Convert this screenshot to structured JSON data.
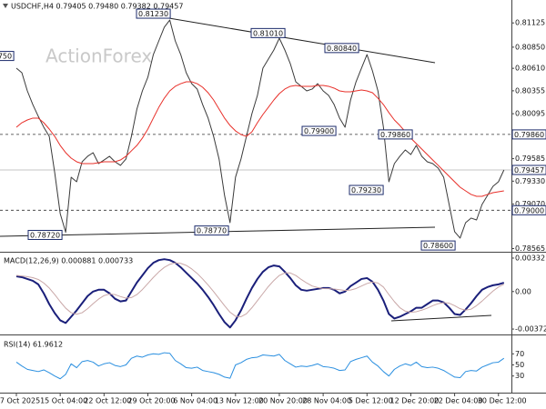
{
  "chart_data": [
    {
      "type": "line",
      "title": "USDCHF,H4  0.79405 0.79480 0.79382 0.79457",
      "watermark": "ActionForex",
      "categories": [
        "7 Oct 2025",
        null,
        null,
        null,
        null,
        null,
        null,
        null,
        "15 Oct 04:00",
        null,
        null,
        null,
        null,
        null,
        null,
        null,
        "22 Oct 12:00",
        null,
        null,
        null,
        null,
        null,
        null,
        null,
        "29 Oct 20:00",
        null,
        null,
        null,
        null,
        null,
        null,
        null,
        "6 Nov 04:00",
        null,
        null,
        null,
        null,
        null,
        null,
        null,
        "13 Nov 12:00",
        null,
        null,
        null,
        null,
        null,
        null,
        null,
        "20 Nov 20:00",
        null,
        null,
        null,
        null,
        null,
        null,
        null,
        "28 Nov 04:00",
        null,
        null,
        null,
        null,
        null,
        null,
        null,
        "5 Dec 12:00",
        null,
        null,
        null,
        null,
        null,
        null,
        null,
        "12 Dec 20:00",
        null,
        null,
        null,
        null,
        null,
        null,
        null,
        "22 Dec 04:00",
        null,
        null,
        null,
        null,
        null,
        null,
        null,
        "30 Dec 12:00",
        null
      ],
      "series": [
        {
          "color": "#3a3a3a",
          "values": [
            0.80612,
            0.8056,
            0.80354,
            0.80199,
            0.80065,
            0.79942,
            0.79838,
            0.79426,
            0.78962,
            0.7875,
            0.79375,
            0.79323,
            0.7955,
            0.79612,
            0.79653,
            0.79529,
            0.7957,
            0.79612,
            0.7955,
            0.79509,
            0.79581,
            0.79838,
            0.80148,
            0.80354,
            0.80509,
            0.80766,
            0.80921,
            0.81076,
            0.81158,
            0.80921,
            0.80766,
            0.8056,
            0.80436,
            0.80375,
            0.80199,
            0.80045,
            0.79838,
            0.79581,
            0.79168,
            0.78859,
            0.79375,
            0.79581,
            0.79838,
            0.80096,
            0.80302,
            0.80612,
            0.80715,
            0.80818,
            0.80952,
            0.80818,
            0.80663,
            0.80457,
            0.80406,
            0.80354,
            0.80375,
            0.80436,
            0.80354,
            0.80302,
            0.80199,
            0.80045,
            0.79942,
            0.80251,
            0.80457,
            0.80612,
            0.80766,
            0.80581,
            0.80354,
            0.79942,
            0.79323,
            0.79529,
            0.79612,
            0.79684,
            0.79632,
            0.79735,
            0.79612,
            0.7955,
            0.79529,
            0.79478,
            0.79375,
            0.79065,
            0.78756,
            0.78684,
            0.78859,
            0.78911,
            0.7889,
            0.79065,
            0.79168,
            0.79271,
            0.79323,
            0.79457
          ]
        },
        {
          "color": "#e8302a",
          "values": [
            0.79942,
            0.79993,
            0.80024,
            0.80045,
            0.80045,
            0.79993,
            0.79921,
            0.79838,
            0.79735,
            0.79653,
            0.79591,
            0.7955,
            0.79529,
            0.79529,
            0.79529,
            0.79539,
            0.7955,
            0.7955,
            0.7955,
            0.7957,
            0.79612,
            0.79674,
            0.79735,
            0.79818,
            0.79921,
            0.80045,
            0.80168,
            0.80271,
            0.80354,
            0.80406,
            0.80436,
            0.80457,
            0.80457,
            0.80436,
            0.80395,
            0.80333,
            0.80251,
            0.80148,
            0.80045,
            0.79962,
            0.799,
            0.79859,
            0.79838,
            0.7989,
            0.79993,
            0.80086,
            0.80168,
            0.80251,
            0.80323,
            0.80375,
            0.80406,
            0.80416,
            0.80406,
            0.80406,
            0.80406,
            0.80416,
            0.80416,
            0.80406,
            0.80385,
            0.80354,
            0.80344,
            0.80344,
            0.80354,
            0.80364,
            0.80354,
            0.80333,
            0.80271,
            0.80199,
            0.80107,
            0.80024,
            0.79962,
            0.7989,
            0.79818,
            0.79756,
            0.79694,
            0.79632,
            0.7957,
            0.79509,
            0.79447,
            0.79385,
            0.79323,
            0.79261,
            0.7922,
            0.79179,
            0.79158,
            0.79158,
            0.79179,
            0.79199,
            0.7921,
            0.7922
          ]
        }
      ],
      "ylim": [
        0.78529,
        0.81385
      ],
      "yticks": [
        0.81125,
        {
          "value": 0.8085,
          "label": "0.80850"
        },
        {
          "value": 0.8061,
          "label": "0.80610"
        },
        0.80355,
        0.80095,
        0.79585,
        {
          "value": 0.7933,
          "label": "0.79330"
        },
        {
          "value": 0.7907,
          "label": "0.79070"
        },
        0.78565
      ],
      "hlines": [
        {
          "value": 0.7986,
          "label": "0.79860"
        },
        {
          "value": 0.79,
          "label": "0.79000"
        }
      ],
      "last": {
        "value": 0.79457,
        "label": "0.79457"
      },
      "annotations": [
        {
          "value": 0.8075,
          "label": "0.80750"
        },
        {
          "value": 0.8123,
          "label": "0.81230"
        },
        {
          "value": 0.8101,
          "label": "0.81010"
        },
        {
          "value": 0.8084,
          "label": "0.80840"
        },
        {
          "value": 0.799,
          "label": "0.79900"
        },
        {
          "value": 0.7986,
          "label": "0.79860"
        },
        {
          "value": 0.7923,
          "label": "0.79230"
        },
        {
          "value": 0.7872,
          "label": "0.78720"
        },
        {
          "value": 0.7877,
          "label": "0.78770"
        },
        {
          "value": 0.786,
          "label": "0.78600"
        }
      ]
    },
    {
      "type": "line",
      "title": "MACD(12,26,9) 0.000881 0.000733",
      "series": [
        {
          "color": "#1a1f7a",
          "values": [
            0.001516,
            0.001427,
            0.001249,
            0.00107,
            0.000714,
            -0.000178,
            -0.001249,
            -0.002141,
            -0.002854,
            -0.003122,
            -0.002498,
            -0.001873,
            -0.00116,
            -0.000446,
            0,
            0.000178,
            0.000178,
            -0.000178,
            -0.000714,
            -0.000981,
            -0.000892,
            0,
            0.000892,
            0.001606,
            0.002319,
            0.002854,
            0.003122,
            0.003211,
            0.003122,
            0.002854,
            0.002408,
            0.001873,
            0.001338,
            0.000803,
            0.000178,
            -0.000535,
            -0.001338,
            -0.00223,
            -0.003033,
            -0.003568,
            -0.002854,
            -0.001873,
            -0.000714,
            0.000357,
            0.001249,
            0.001962,
            0.002408,
            0.002587,
            0.002498,
            0.001962,
            0.001338,
            0.000624,
            0.000178,
            8.9e-05,
            0.000178,
            0.000268,
            0.000357,
            0.000357,
            0.000178,
            -0.000178,
            0,
            0.000535,
            0.000892,
            0.001249,
            0.001338,
            0.000981,
            0.000178,
            -0.000892,
            -0.00223,
            -0.002676,
            -0.002498,
            -0.00223,
            -0.001962,
            -0.001606,
            -0.001606,
            -0.001249,
            -0.000892,
            -0.000892,
            -0.00107,
            -0.001606,
            -0.00223,
            -0.002319,
            -0.001784,
            -0.00116,
            -0.000446,
            0.000178,
            0.000446,
            0.000624,
            0.000714,
            0.000881
          ]
        },
        {
          "color": "#c9a7a7",
          "values": [
            0.0016,
            0.00155,
            0.00148,
            0.00138,
            0.0012,
            0.00085,
            0.00035,
            -0.0003,
            -0.001,
            -0.00165,
            -0.0021,
            -0.00225,
            -0.0021,
            -0.0017,
            -0.0012,
            -0.00075,
            -0.0004,
            -0.00025,
            -0.0003,
            -0.0005,
            -0.00065,
            -0.0006,
            -0.0003,
            0.0002,
            0.0008,
            0.0014,
            0.00195,
            0.0024,
            0.0027,
            0.00285,
            0.0028,
            0.0026,
            0.00225,
            0.0018,
            0.00125,
            0.00065,
            0,
            -0.0007,
            -0.0014,
            -0.00205,
            -0.00245,
            -0.0025,
            -0.0022,
            -0.0016,
            -0.0009,
            -0.0002,
            0.0005,
            0.0011,
            0.0016,
            0.00185,
            0.00185,
            0.0016,
            0.0012,
            0.00085,
            0.00055,
            0.0004,
            0.0003,
            0.00028,
            0.00025,
            0.00018,
            0.0001,
            0.00015,
            0.0003,
            0.00055,
            0.0008,
            0.00095,
            0.00085,
            0.00045,
            -0.0003,
            -0.001,
            -0.0016,
            -0.00195,
            -0.00205,
            -0.002,
            -0.00185,
            -0.00165,
            -0.0014,
            -0.0012,
            -0.0011,
            -0.00115,
            -0.0014,
            -0.0017,
            -0.00185,
            -0.00175,
            -0.0014,
            -0.00095,
            -0.00045,
            5e-05,
            0.00045,
            0.000733
          ]
        }
      ],
      "ylim": [
        -0.00426,
        0.00377
      ],
      "yticks": [
        0.003321,
        {
          "value": 0,
          "label": "0.00"
        },
        -0.003723
      ]
    },
    {
      "type": "line",
      "title": "RSI(14) 61.9612",
      "series": [
        {
          "color": "#2a8fe0",
          "values": [
            55,
            48,
            42,
            40,
            38,
            41,
            36,
            30,
            25,
            33,
            52,
            45,
            56,
            58,
            55,
            48,
            52,
            54,
            49,
            47,
            50,
            62,
            66,
            64,
            68,
            70,
            69,
            72,
            71,
            58,
            52,
            45,
            44,
            46,
            40,
            38,
            36,
            33,
            28,
            26,
            50,
            54,
            60,
            63,
            64,
            68,
            67,
            66,
            69,
            58,
            52,
            46,
            48,
            47,
            49,
            52,
            47,
            46,
            44,
            40,
            41,
            56,
            60,
            63,
            66,
            55,
            48,
            38,
            30,
            42,
            48,
            52,
            49,
            55,
            47,
            45,
            46,
            44,
            40,
            34,
            28,
            27,
            38,
            40,
            39,
            46,
            50,
            54,
            55,
            61.9612
          ]
        }
      ],
      "ylim": [
        0,
        100
      ],
      "yticks": [
        70,
        50,
        30
      ]
    }
  ]
}
